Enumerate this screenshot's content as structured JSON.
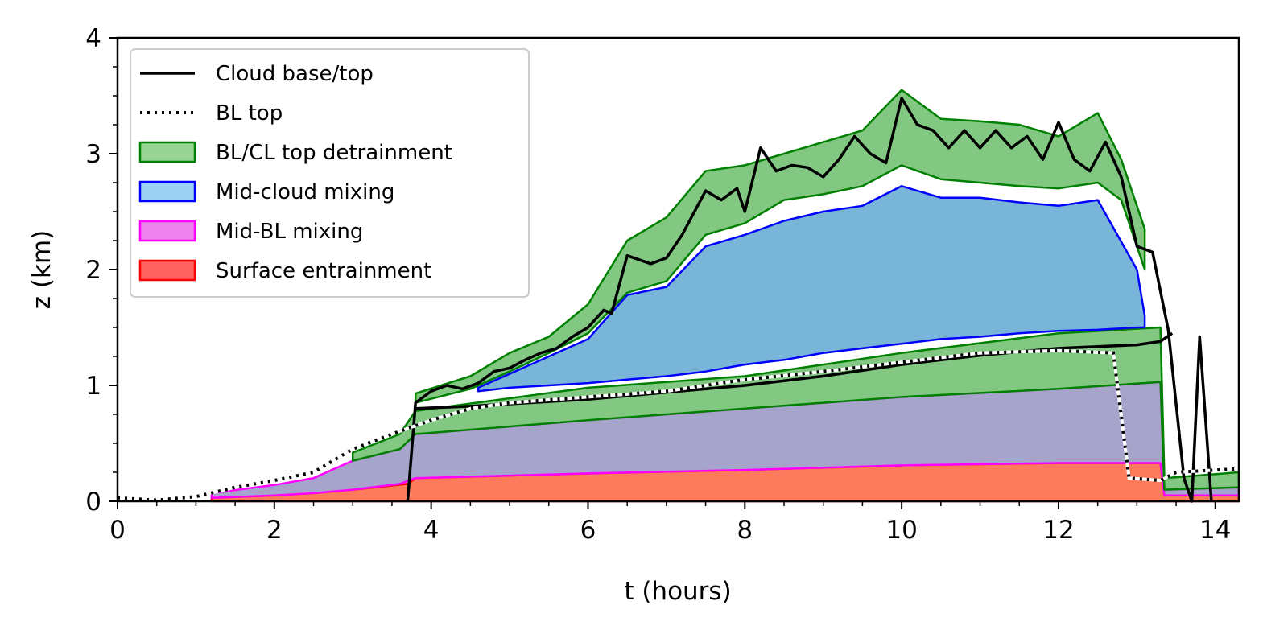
{
  "chart_data": {
    "type": "area",
    "xlabel": "t (hours)",
    "ylabel": "z (km)",
    "xlim": [
      0,
      14.3
    ],
    "ylim": [
      0,
      4
    ],
    "x_ticks": [
      "0",
      "2",
      "4",
      "6",
      "8",
      "10",
      "12",
      "14"
    ],
    "y_ticks": [
      "0",
      "1",
      "2",
      "3",
      "4"
    ],
    "grid": false,
    "legend_position": "top-left",
    "legend": [
      {
        "label": "Cloud base/top",
        "style": "solid-line",
        "color": "#000000"
      },
      {
        "label": "BL top",
        "style": "dotted-line",
        "color": "#000000"
      },
      {
        "label": "BL/CL top detrainment",
        "style": "patch",
        "color": "#98d594",
        "edge": "#008000"
      },
      {
        "label": "Mid-cloud mixing",
        "style": "patch",
        "color": "#9cd3f5",
        "edge": "#0000ff"
      },
      {
        "label": "Mid-BL mixing",
        "style": "patch",
        "color": "#ee82ee",
        "edge": "#ff00ff"
      },
      {
        "label": "Surface entrainment",
        "style": "patch",
        "color": "#ff6060",
        "edge": "#ff0000"
      }
    ],
    "colors": {
      "surface_fill": "#fc7b5d",
      "surface_edge": "#ff0000",
      "midbl_fill": "#a7a4cc",
      "midbl_edge": "#ff00ff",
      "bltop_fill": "#82c882",
      "bltop_edge": "#008000",
      "midcloud_fill": "#78b5d9",
      "midcloud_edge": "#0000ff",
      "cloudtop_fill": "#82c882",
      "cloudtop_edge": "#008000"
    },
    "series": [
      {
        "name": "Surface entrainment",
        "kind": "band",
        "points": [
          {
            "x": 1.2,
            "lo": 0,
            "hi": 0.03
          },
          {
            "x": 2.0,
            "lo": 0,
            "hi": 0.05
          },
          {
            "x": 2.5,
            "lo": 0,
            "hi": 0.07
          },
          {
            "x": 3.0,
            "lo": 0,
            "hi": 0.1
          },
          {
            "x": 3.7,
            "lo": 0,
            "hi": 0.15
          },
          {
            "x": 3.8,
            "lo": 0,
            "hi": 0.2
          },
          {
            "x": 6.0,
            "lo": 0,
            "hi": 0.24
          },
          {
            "x": 8.0,
            "lo": 0,
            "hi": 0.27
          },
          {
            "x": 10.0,
            "lo": 0,
            "hi": 0.31
          },
          {
            "x": 12.0,
            "lo": 0,
            "hi": 0.33
          },
          {
            "x": 13.3,
            "lo": 0,
            "hi": 0.33
          },
          {
            "x": 13.35,
            "lo": 0,
            "hi": 0.05
          },
          {
            "x": 14.3,
            "lo": 0,
            "hi": 0.05
          }
        ]
      },
      {
        "name": "Mid-BL mixing",
        "kind": "band",
        "points": [
          {
            "x": 1.2,
            "lo": 0.03,
            "hi": 0.07
          },
          {
            "x": 2.0,
            "lo": 0.05,
            "hi": 0.14
          },
          {
            "x": 2.5,
            "lo": 0.07,
            "hi": 0.2
          },
          {
            "x": 3.0,
            "lo": 0.1,
            "hi": 0.35
          },
          {
            "x": 3.6,
            "lo": 0.15,
            "hi": 0.45
          },
          {
            "x": 3.8,
            "lo": 0.2,
            "hi": 0.58
          },
          {
            "x": 6.0,
            "lo": 0.24,
            "hi": 0.7
          },
          {
            "x": 8.0,
            "lo": 0.27,
            "hi": 0.8
          },
          {
            "x": 10.0,
            "lo": 0.31,
            "hi": 0.9
          },
          {
            "x": 12.0,
            "lo": 0.33,
            "hi": 0.97
          },
          {
            "x": 13.3,
            "lo": 0.33,
            "hi": 1.03
          },
          {
            "x": 13.35,
            "lo": 0.05,
            "hi": 0.1
          },
          {
            "x": 14.3,
            "lo": 0.05,
            "hi": 0.12
          }
        ]
      },
      {
        "name": "BL top detrainment",
        "kind": "band",
        "points": [
          {
            "x": 3.0,
            "lo": 0.35,
            "hi": 0.42
          },
          {
            "x": 3.6,
            "lo": 0.45,
            "hi": 0.58
          },
          {
            "x": 3.8,
            "lo": 0.58,
            "hi": 0.78
          },
          {
            "x": 6.0,
            "lo": 0.7,
            "hi": 0.98
          },
          {
            "x": 8.0,
            "lo": 0.8,
            "hi": 1.08
          },
          {
            "x": 10.0,
            "lo": 0.9,
            "hi": 1.28
          },
          {
            "x": 12.0,
            "lo": 0.97,
            "hi": 1.45
          },
          {
            "x": 13.3,
            "lo": 1.03,
            "hi": 1.5
          },
          {
            "x": 13.35,
            "lo": 0.1,
            "hi": 0.2
          },
          {
            "x": 14.3,
            "lo": 0.12,
            "hi": 0.25
          }
        ]
      },
      {
        "name": "Mid-cloud mixing",
        "kind": "band",
        "points": [
          {
            "x": 4.6,
            "lo": 0.95,
            "hi": 0.98
          },
          {
            "x": 5.0,
            "lo": 0.98,
            "hi": 1.1
          },
          {
            "x": 5.5,
            "lo": 1.0,
            "hi": 1.25
          },
          {
            "x": 6.0,
            "lo": 1.02,
            "hi": 1.4
          },
          {
            "x": 6.5,
            "lo": 1.05,
            "hi": 1.78
          },
          {
            "x": 7.0,
            "lo": 1.08,
            "hi": 1.85
          },
          {
            "x": 7.5,
            "lo": 1.12,
            "hi": 2.2
          },
          {
            "x": 8.0,
            "lo": 1.18,
            "hi": 2.3
          },
          {
            "x": 8.5,
            "lo": 1.22,
            "hi": 2.42
          },
          {
            "x": 9.0,
            "lo": 1.28,
            "hi": 2.5
          },
          {
            "x": 9.5,
            "lo": 1.32,
            "hi": 2.55
          },
          {
            "x": 10.0,
            "lo": 1.36,
            "hi": 2.72
          },
          {
            "x": 10.5,
            "lo": 1.4,
            "hi": 2.62
          },
          {
            "x": 11.0,
            "lo": 1.42,
            "hi": 2.62
          },
          {
            "x": 11.5,
            "lo": 1.45,
            "hi": 2.58
          },
          {
            "x": 12.0,
            "lo": 1.47,
            "hi": 2.55
          },
          {
            "x": 12.5,
            "lo": 1.48,
            "hi": 2.6
          },
          {
            "x": 13.0,
            "lo": 1.5,
            "hi": 2.0
          },
          {
            "x": 13.1,
            "lo": 1.5,
            "hi": 1.6
          }
        ]
      },
      {
        "name": "Cloud top detrainment",
        "kind": "band",
        "points": [
          {
            "x": 3.8,
            "lo": 0.85,
            "hi": 0.93
          },
          {
            "x": 4.5,
            "lo": 0.97,
            "hi": 1.08
          },
          {
            "x": 5.0,
            "lo": 1.12,
            "hi": 1.28
          },
          {
            "x": 5.5,
            "lo": 1.28,
            "hi": 1.42
          },
          {
            "x": 6.0,
            "lo": 1.45,
            "hi": 1.7
          },
          {
            "x": 6.5,
            "lo": 1.8,
            "hi": 2.25
          },
          {
            "x": 7.0,
            "lo": 1.9,
            "hi": 2.45
          },
          {
            "x": 7.5,
            "lo": 2.3,
            "hi": 2.85
          },
          {
            "x": 8.0,
            "lo": 2.4,
            "hi": 2.9
          },
          {
            "x": 8.5,
            "lo": 2.6,
            "hi": 3.0
          },
          {
            "x": 9.0,
            "lo": 2.65,
            "hi": 3.1
          },
          {
            "x": 9.5,
            "lo": 2.72,
            "hi": 3.2
          },
          {
            "x": 10.0,
            "lo": 2.9,
            "hi": 3.55
          },
          {
            "x": 10.5,
            "lo": 2.78,
            "hi": 3.3
          },
          {
            "x": 11.0,
            "lo": 2.75,
            "hi": 3.28
          },
          {
            "x": 11.5,
            "lo": 2.72,
            "hi": 3.25
          },
          {
            "x": 12.0,
            "lo": 2.7,
            "hi": 3.15
          },
          {
            "x": 12.5,
            "lo": 2.75,
            "hi": 3.35
          },
          {
            "x": 12.8,
            "lo": 2.6,
            "hi": 2.95
          },
          {
            "x": 13.1,
            "lo": 2.0,
            "hi": 2.35
          }
        ]
      },
      {
        "name": "Cloud base/top",
        "kind": "line",
        "style": "solid",
        "points": [
          [
            3.7,
            0
          ],
          [
            3.8,
            0.85
          ],
          [
            4.0,
            0.95
          ],
          [
            4.2,
            1.0
          ],
          [
            4.4,
            0.97
          ],
          [
            4.6,
            1.02
          ],
          [
            4.8,
            1.12
          ],
          [
            5.0,
            1.15
          ],
          [
            5.2,
            1.22
          ],
          [
            5.4,
            1.28
          ],
          [
            5.6,
            1.32
          ],
          [
            5.8,
            1.42
          ],
          [
            6.0,
            1.5
          ],
          [
            6.2,
            1.65
          ],
          [
            6.3,
            1.62
          ],
          [
            6.5,
            2.12
          ],
          [
            6.8,
            2.05
          ],
          [
            7.0,
            2.1
          ],
          [
            7.2,
            2.3
          ],
          [
            7.5,
            2.68
          ],
          [
            7.7,
            2.6
          ],
          [
            7.9,
            2.7
          ],
          [
            8.0,
            2.5
          ],
          [
            8.2,
            3.05
          ],
          [
            8.4,
            2.85
          ],
          [
            8.6,
            2.9
          ],
          [
            8.8,
            2.88
          ],
          [
            9.0,
            2.8
          ],
          [
            9.2,
            2.95
          ],
          [
            9.4,
            3.15
          ],
          [
            9.6,
            3.0
          ],
          [
            9.8,
            2.92
          ],
          [
            10.0,
            3.48
          ],
          [
            10.2,
            3.25
          ],
          [
            10.4,
            3.2
          ],
          [
            10.6,
            3.05
          ],
          [
            10.8,
            3.2
          ],
          [
            11.0,
            3.05
          ],
          [
            11.2,
            3.2
          ],
          [
            11.4,
            3.05
          ],
          [
            11.6,
            3.15
          ],
          [
            11.8,
            2.95
          ],
          [
            12.0,
            3.27
          ],
          [
            12.2,
            2.95
          ],
          [
            12.4,
            2.85
          ],
          [
            12.6,
            3.1
          ],
          [
            12.8,
            2.8
          ],
          [
            13.0,
            2.2
          ],
          [
            13.2,
            2.15
          ],
          [
            13.4,
            1.48
          ],
          [
            13.6,
            0.2
          ],
          [
            13.7,
            0
          ],
          [
            13.8,
            1.42
          ],
          [
            13.95,
            0
          ]
        ]
      },
      {
        "name": "Cloud base",
        "kind": "line",
        "style": "solid",
        "points": [
          [
            3.8,
            0.8
          ],
          [
            4.5,
            0.82
          ],
          [
            5.0,
            0.84
          ],
          [
            6.0,
            0.88
          ],
          [
            7.0,
            0.94
          ],
          [
            8.0,
            1.0
          ],
          [
            9.0,
            1.08
          ],
          [
            10.0,
            1.18
          ],
          [
            11.0,
            1.26
          ],
          [
            12.0,
            1.32
          ],
          [
            13.0,
            1.35
          ],
          [
            13.3,
            1.38
          ],
          [
            13.45,
            1.45
          ]
        ]
      },
      {
        "name": "BL top",
        "kind": "line",
        "style": "dotted",
        "points": [
          [
            0.0,
            0.03
          ],
          [
            0.5,
            0.01
          ],
          [
            1.0,
            0.04
          ],
          [
            1.5,
            0.12
          ],
          [
            2.0,
            0.18
          ],
          [
            2.5,
            0.25
          ],
          [
            3.0,
            0.45
          ],
          [
            3.5,
            0.58
          ],
          [
            4.0,
            0.7
          ],
          [
            4.5,
            0.8
          ],
          [
            5.0,
            0.85
          ],
          [
            6.0,
            0.9
          ],
          [
            7.0,
            0.95
          ],
          [
            8.0,
            1.05
          ],
          [
            9.0,
            1.12
          ],
          [
            10.0,
            1.2
          ],
          [
            11.0,
            1.28
          ],
          [
            12.0,
            1.3
          ],
          [
            12.7,
            1.28
          ],
          [
            12.9,
            0.2
          ],
          [
            13.3,
            0.18
          ],
          [
            13.5,
            0.25
          ],
          [
            14.3,
            0.28
          ]
        ]
      }
    ]
  }
}
